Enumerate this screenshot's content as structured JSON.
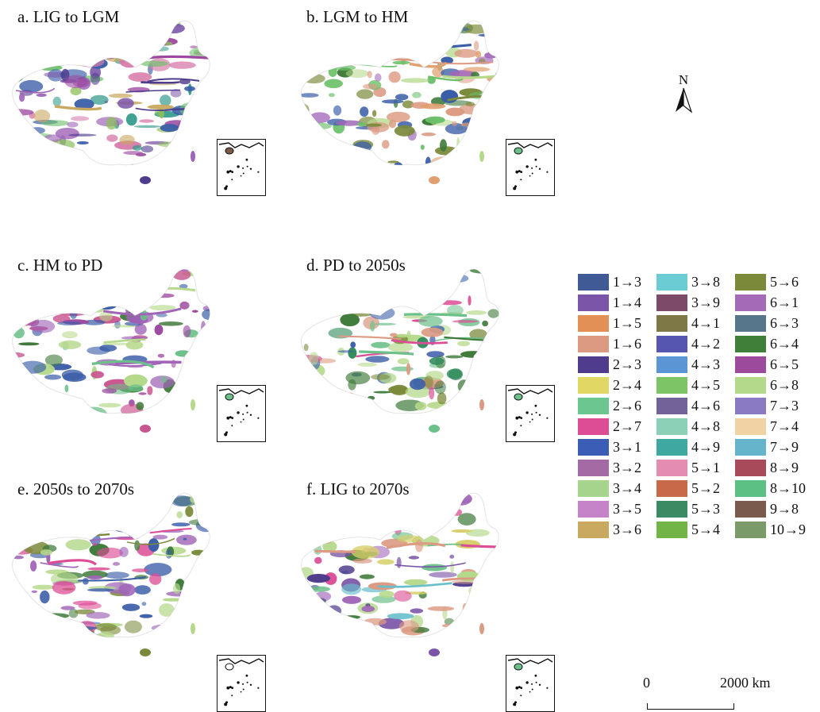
{
  "panels": [
    {
      "title": "a. LIG to LGM",
      "colors": [
        "#7b56a8",
        "#a065b8",
        "#9c4aa0",
        "#c9a85f",
        "#3b5ea8",
        "#d77aa8",
        "#6cc06a",
        "#2f9a8a",
        "#8cbf5a",
        "#4f3c8c"
      ],
      "inset_fill": "#7b5a4a"
    },
    {
      "title": "b. LGM to HM",
      "colors": [
        "#dc9a82",
        "#b5d98b",
        "#7a8a3a",
        "#3f7a3a",
        "#6cc06a",
        "#a065b8",
        "#3b5ea8",
        "#e0a070"
      ],
      "inset_fill": "#6cc08a"
    },
    {
      "title": "c. HM to PD",
      "colors": [
        "#a065b8",
        "#b5d98b",
        "#6cc08a",
        "#3f7a3a",
        "#3b5ea8",
        "#9c4aa0",
        "#c9558f"
      ],
      "inset_fill": "#6cc08a"
    },
    {
      "title": "d. PD to 2050s",
      "colors": [
        "#dc4d95",
        "#dc9a82",
        "#b5d98b",
        "#3f7a3a",
        "#2f8a5a",
        "#3b5ea8",
        "#7a8a3a",
        "#6cc08a"
      ],
      "inset_fill": "#6cc08a"
    },
    {
      "title": "e. 2050s to 2070s",
      "colors": [
        "#a065b8",
        "#b5d98b",
        "#3f7a3a",
        "#dc4d95",
        "#3b5ea8",
        "#7a8a3a"
      ],
      "inset_fill": "#ffffff"
    },
    {
      "title": "f. LIG to 2070s",
      "colors": [
        "#dc4d95",
        "#dc9a82",
        "#b5d98b",
        "#68bfcc",
        "#d6cf6a",
        "#4f3c8c",
        "#a065b8",
        "#3f7a3a",
        "#6cc08a",
        "#7b56a8"
      ],
      "inset_fill": "#6cc08a"
    }
  ],
  "north_arrow": {
    "label": "N"
  },
  "legend": [
    {
      "label": "1→3",
      "color": "#3f5a95"
    },
    {
      "label": "1→4",
      "color": "#7b56a8"
    },
    {
      "label": "1→5",
      "color": "#e39056"
    },
    {
      "label": "1→6",
      "color": "#dc9a82"
    },
    {
      "label": "2→3",
      "color": "#4f3c8c"
    },
    {
      "label": "2→4",
      "color": "#e0d765"
    },
    {
      "label": "2→6",
      "color": "#6cc690"
    },
    {
      "label": "2→7",
      "color": "#dc4d95"
    },
    {
      "label": "3→1",
      "color": "#3b5db5"
    },
    {
      "label": "3→2",
      "color": "#a36aa3"
    },
    {
      "label": "3→4",
      "color": "#a6d48c"
    },
    {
      "label": "3→5",
      "color": "#c584c8"
    },
    {
      "label": "3→6",
      "color": "#c9a860"
    },
    {
      "label": "3→8",
      "color": "#6cccd4"
    },
    {
      "label": "3→9",
      "color": "#7e4a6a"
    },
    {
      "label": "4→1",
      "color": "#7d7846"
    },
    {
      "label": "4→2",
      "color": "#5656b0"
    },
    {
      "label": "4→3",
      "color": "#5c95d4"
    },
    {
      "label": "4→5",
      "color": "#7cc466"
    },
    {
      "label": "4→6",
      "color": "#73619a"
    },
    {
      "label": "4→8",
      "color": "#8dd0b8"
    },
    {
      "label": "4→9",
      "color": "#3fa8a0"
    },
    {
      "label": "5→1",
      "color": "#e48cb2"
    },
    {
      "label": "5→2",
      "color": "#c86a4a"
    },
    {
      "label": "5→3",
      "color": "#3c8a64"
    },
    {
      "label": "5→4",
      "color": "#72b446"
    },
    {
      "label": "5→6",
      "color": "#7a8a3a"
    },
    {
      "label": "6→1",
      "color": "#a46ab8"
    },
    {
      "label": "6→3",
      "color": "#57768c"
    },
    {
      "label": "6→4",
      "color": "#3f7f3a"
    },
    {
      "label": "6→5",
      "color": "#9c4a9c"
    },
    {
      "label": "6→8",
      "color": "#b5d98b"
    },
    {
      "label": "7→3",
      "color": "#8a7ac4"
    },
    {
      "label": "7→4",
      "color": "#f0d2a4"
    },
    {
      "label": "7→9",
      "color": "#66b4cc"
    },
    {
      "label": "8→9",
      "color": "#a84a5a"
    },
    {
      "label": "8→10",
      "color": "#5cc084"
    },
    {
      "label": "9→8",
      "color": "#7a5a4c"
    },
    {
      "label": "10→9",
      "color": "#7a9a6a"
    }
  ],
  "scale_bar": {
    "start_label": "0",
    "end_label": "2000 km"
  }
}
